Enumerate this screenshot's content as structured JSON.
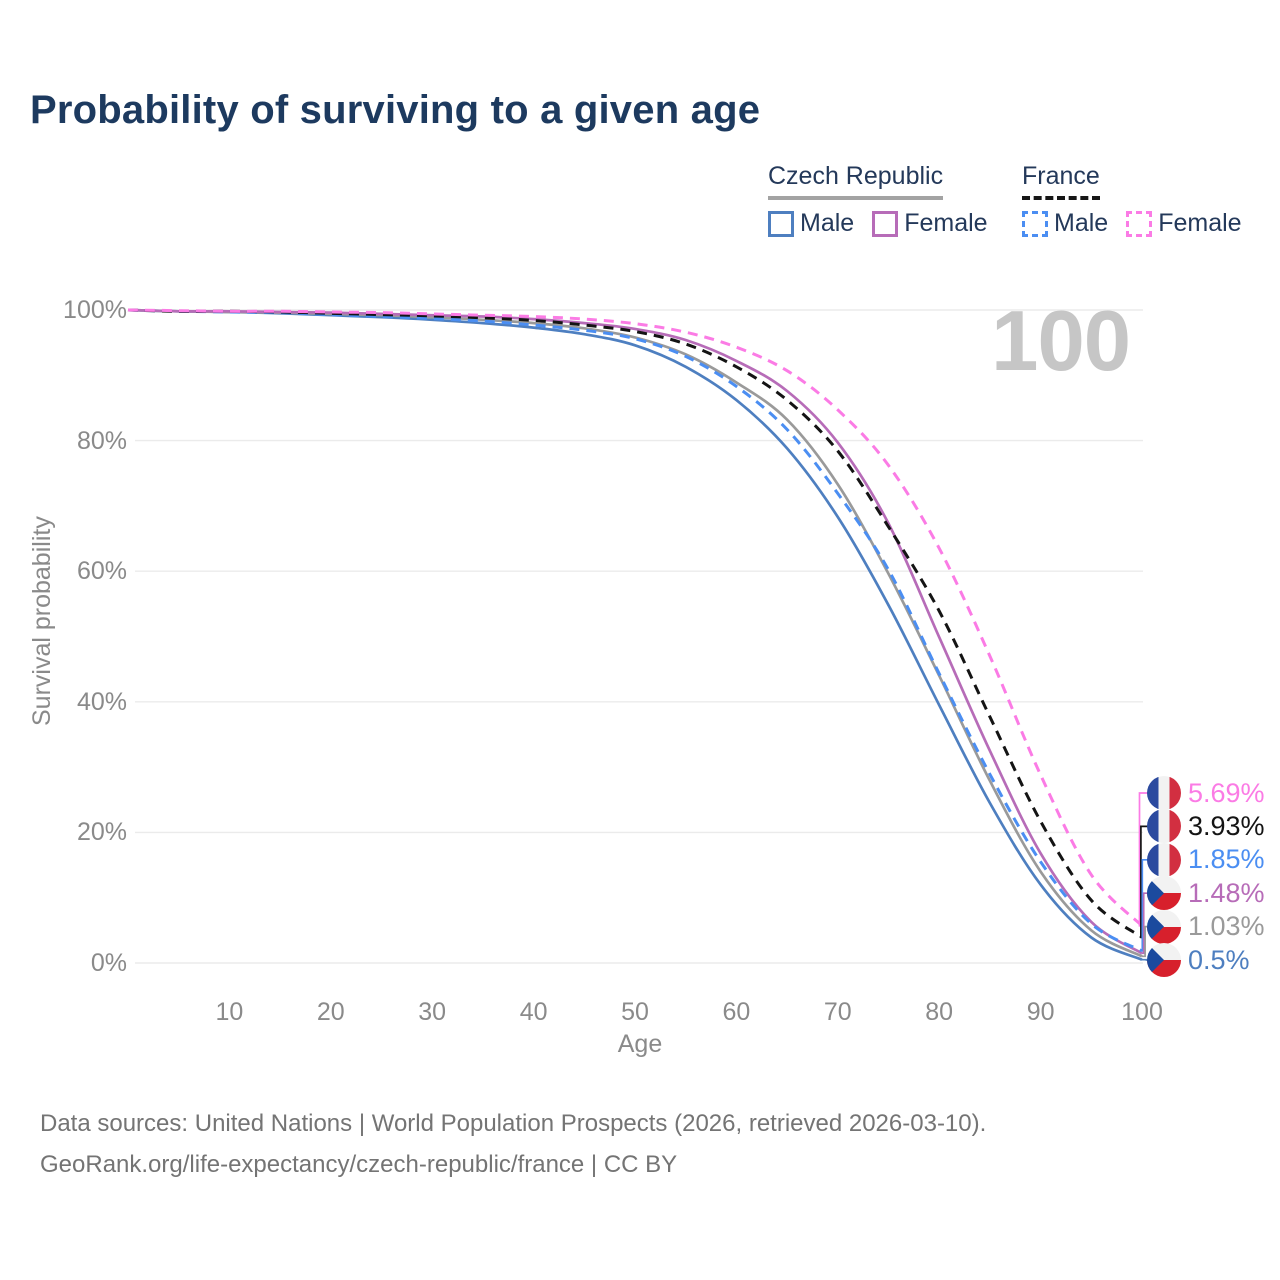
{
  "title": "Probability of surviving to a given age",
  "watermark_age": "100",
  "legend": {
    "groups": [
      {
        "name": "Czech Republic",
        "line_style": "solid",
        "underline_color": "#a3a3a3",
        "items": [
          {
            "label": "Male",
            "color": "#4e7fc0"
          },
          {
            "label": "Female",
            "color": "#b76cb8"
          }
        ]
      },
      {
        "name": "France",
        "line_style": "dashed",
        "underline_color": "#161616",
        "items": [
          {
            "label": "Male",
            "color": "#4b8ef2"
          },
          {
            "label": "Female",
            "color": "#fb7be5"
          }
        ]
      }
    ]
  },
  "axes": {
    "y_title": "Survival probability",
    "x_title": "Age",
    "y_ticks": [
      {
        "label": "100%",
        "value": 100
      },
      {
        "label": "80%",
        "value": 80
      },
      {
        "label": "60%",
        "value": 60
      },
      {
        "label": "40%",
        "value": 40
      },
      {
        "label": "20%",
        "value": 20
      },
      {
        "label": "0%",
        "value": 0
      }
    ],
    "x_ticks": [
      {
        "label": "10",
        "value": 10
      },
      {
        "label": "20",
        "value": 20
      },
      {
        "label": "30",
        "value": 30
      },
      {
        "label": "40",
        "value": 40
      },
      {
        "label": "50",
        "value": 50
      },
      {
        "label": "60",
        "value": 60
      },
      {
        "label": "70",
        "value": 70
      },
      {
        "label": "80",
        "value": 80
      },
      {
        "label": "90",
        "value": 90
      },
      {
        "label": "100",
        "value": 100
      }
    ]
  },
  "chart_data": {
    "type": "line",
    "title": "Probability of surviving to a given age",
    "xlabel": "Age",
    "ylabel": "Survival probability",
    "xlim": [
      0,
      100
    ],
    "ylim": [
      0,
      100
    ],
    "grid": "horizontal",
    "legend_position": "top-right",
    "x": [
      0,
      5,
      10,
      15,
      20,
      25,
      30,
      35,
      40,
      45,
      50,
      55,
      60,
      65,
      70,
      75,
      80,
      85,
      90,
      95,
      100
    ],
    "series": [
      {
        "name": "France Female",
        "country": "France",
        "sex": "Female",
        "color": "#fb7be5",
        "line_style": "dashed",
        "end_label": "5.69%",
        "values": [
          100,
          99.9,
          99.8,
          99.8,
          99.7,
          99.6,
          99.4,
          99.2,
          99.0,
          98.6,
          97.9,
          96.6,
          94.3,
          90.7,
          84.7,
          76.2,
          63.5,
          47.0,
          28.8,
          13.5,
          5.69
        ]
      },
      {
        "name": "France both sexes",
        "country": "France",
        "sex": "Both",
        "color": "#141414",
        "line_style": "dashed",
        "end_label": "3.93%",
        "values": [
          100,
          99.8,
          99.8,
          99.7,
          99.5,
          99.3,
          99.1,
          98.8,
          98.4,
          97.7,
          96.7,
          94.8,
          91.3,
          86.2,
          78.4,
          66.8,
          53.9,
          37.7,
          21.7,
          9.6,
          3.93
        ]
      },
      {
        "name": "France Male",
        "country": "France",
        "sex": "Male",
        "color": "#4b8ef2",
        "line_style": "dashed",
        "end_label": "1.85%",
        "values": [
          100,
          99.8,
          99.7,
          99.6,
          99.3,
          99.0,
          98.7,
          98.3,
          97.7,
          96.9,
          95.6,
          92.9,
          88.3,
          81.7,
          71.9,
          60.2,
          44.3,
          28.9,
          15.5,
          6.0,
          1.85
        ]
      },
      {
        "name": "Czech Republic Female",
        "country": "Czech Republic",
        "sex": "Female",
        "color": "#b76cb8",
        "line_style": "solid",
        "end_label": "1.48%",
        "values": [
          100,
          99.8,
          99.8,
          99.7,
          99.6,
          99.4,
          99.2,
          99.0,
          98.6,
          98.0,
          97.1,
          95.4,
          92.2,
          87.6,
          79.7,
          67.3,
          49.9,
          32.5,
          16.8,
          6.3,
          1.48
        ]
      },
      {
        "name": "Czech Republic both sexes",
        "country": "Czech Republic",
        "sex": "Both",
        "color": "#9a9a9a",
        "line_style": "solid",
        "end_label": "1.03%",
        "values": [
          100,
          99.8,
          99.7,
          99.6,
          99.4,
          99.2,
          98.9,
          98.5,
          98.0,
          97.2,
          95.8,
          93.2,
          88.9,
          83.2,
          73.3,
          59.6,
          44.0,
          27.9,
          14.0,
          5.0,
          1.03
        ]
      },
      {
        "name": "Czech Republic Male",
        "country": "Czech Republic",
        "sex": "Male",
        "color": "#4e7fc0",
        "line_style": "solid",
        "end_label": "0.5%",
        "values": [
          100,
          99.8,
          99.7,
          99.5,
          99.2,
          98.9,
          98.5,
          98.0,
          97.3,
          96.3,
          94.6,
          91.3,
          86.2,
          78.8,
          68.3,
          54.8,
          39.5,
          24.5,
          12.0,
          3.9,
          0.5
        ]
      }
    ]
  },
  "end_labels": [
    {
      "country": "France",
      "flag": "fr",
      "value": "5.69%",
      "color": "#fb7be5"
    },
    {
      "country": "France",
      "flag": "fr",
      "value": "3.93%",
      "color": "#141414"
    },
    {
      "country": "France",
      "flag": "fr",
      "value": "1.85%",
      "color": "#4b8ef2"
    },
    {
      "country": "Czech Republic",
      "flag": "cz",
      "value": "1.48%",
      "color": "#b76cb8"
    },
    {
      "country": "Czech Republic",
      "flag": "cz",
      "value": "1.03%",
      "color": "#9a9a9a"
    },
    {
      "country": "Czech Republic",
      "flag": "cz",
      "value": "0.5%",
      "color": "#4e7fc0"
    }
  ],
  "footer": {
    "line1": "Data sources: United Nations | World Population Prospects (2026, retrieved 2026-03-10).",
    "line2": "GeoRank.org/life-expectancy/czech-republic/france | CC BY"
  }
}
